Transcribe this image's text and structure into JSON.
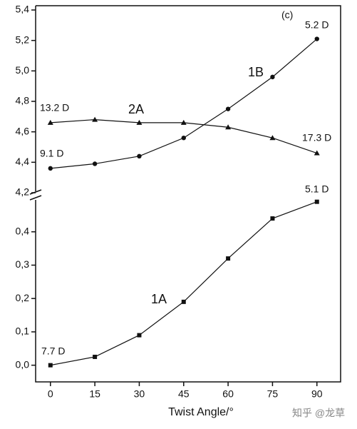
{
  "chart_data": {
    "type": "line",
    "x": [
      0,
      15,
      30,
      45,
      60,
      75,
      90
    ],
    "xlim": [
      -5,
      98
    ],
    "xticks": [
      0,
      15,
      30,
      45,
      60,
      75,
      90
    ],
    "xlabel": "Twist Angle/°",
    "panels": [
      {
        "ylim": [
          4.2,
          5.4
        ],
        "yticks": [
          {
            "value": 4.2,
            "label": "4,2"
          },
          {
            "value": 4.4,
            "label": "4,4"
          },
          {
            "value": 4.6,
            "label": "4,6"
          },
          {
            "value": 4.8,
            "label": "4,8"
          },
          {
            "value": 5.0,
            "label": "5,0"
          },
          {
            "value": 5.2,
            "label": "5,2"
          },
          {
            "value": 5.4,
            "label": "5,4"
          }
        ],
        "series": [
          {
            "name": "1B",
            "color": "#111111",
            "marker": "circle",
            "values": [
              4.36,
              4.39,
              4.44,
              4.56,
              4.75,
              4.96,
              5.21
            ]
          },
          {
            "name": "2A",
            "color": "#111111",
            "marker": "triangle",
            "values": [
              4.66,
              4.68,
              4.66,
              4.66,
              4.63,
              4.56,
              4.46
            ]
          }
        ]
      },
      {
        "ylim": [
          -0.05,
          0.5
        ],
        "yticks": [
          {
            "value": 0.0,
            "label": "0,0"
          },
          {
            "value": 0.1,
            "label": "0,1"
          },
          {
            "value": 0.2,
            "label": "0,2"
          },
          {
            "value": 0.3,
            "label": "0,3"
          },
          {
            "value": 0.4,
            "label": "0,4"
          }
        ],
        "series": [
          {
            "name": "1A",
            "color": "#111111",
            "marker": "square",
            "values": [
              0.0,
              0.025,
              0.09,
              0.19,
              0.32,
              0.44,
              0.49
            ]
          }
        ]
      }
    ],
    "annotations": [
      "(c)",
      "5.2 D",
      "1B",
      "13.2 D",
      "2A",
      "9.1 D",
      "17.3 D",
      "5.1 D",
      "1A",
      "7.7 D"
    ],
    "watermark": "知乎 @龙草"
  }
}
